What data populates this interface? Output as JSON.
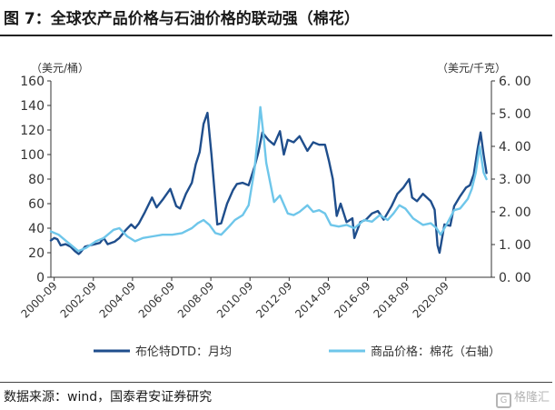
{
  "title": "图 7：全球农产品价格与石油价格的联动强（棉花）",
  "source": "数据来源：wind，国泰君安证券研究",
  "watermark": "格隆汇",
  "chart_data": {
    "type": "line",
    "left_axis": {
      "unit": "（美元/桶）",
      "ylim": [
        0,
        160
      ],
      "tick_labels": [
        "0",
        "20",
        "40",
        "60",
        "80",
        "100",
        "120",
        "140",
        "160"
      ]
    },
    "right_axis": {
      "unit": "（美元/千克）",
      "ylim": [
        0,
        6
      ],
      "tick_labels": [
        "0. 00",
        "1. 00",
        "2. 00",
        "3. 00",
        "4. 00",
        "5. 00",
        "6. 00"
      ]
    },
    "x_range": [
      2000.5,
      2023.0
    ],
    "x_tick_values": [
      2000.67,
      2002.67,
      2004.67,
      2006.67,
      2008.67,
      2010.67,
      2012.67,
      2014.67,
      2016.67,
      2018.67,
      2020.67
    ],
    "x_tick_labels": [
      "2000-09",
      "2002-09",
      "2004-09",
      "2006-09",
      "2008-09",
      "2010-09",
      "2012-09",
      "2014-09",
      "2016-09",
      "2018-09",
      "2020-09"
    ],
    "legend_position": "bottom",
    "series": [
      {
        "name": "布伦特DTD：月均",
        "axis": "left",
        "color": "#1f4e8c",
        "x": [
          2000.5,
          2000.67,
          2000.83,
          2001.0,
          2001.25,
          2001.5,
          2001.75,
          2001.92,
          2002.0,
          2002.25,
          2002.5,
          2002.75,
          2003.0,
          2003.2,
          2003.4,
          2003.75,
          2004.0,
          2004.3,
          2004.6,
          2004.8,
          2005.0,
          2005.3,
          2005.67,
          2005.9,
          2006.2,
          2006.6,
          2006.9,
          2007.1,
          2007.4,
          2007.7,
          2007.9,
          2008.1,
          2008.3,
          2008.5,
          2008.7,
          2008.9,
          2009.0,
          2009.2,
          2009.5,
          2009.8,
          2010.0,
          2010.3,
          2010.6,
          2010.9,
          2011.1,
          2011.3,
          2011.6,
          2011.9,
          2012.2,
          2012.4,
          2012.6,
          2012.9,
          2013.2,
          2013.6,
          2013.9,
          2014.2,
          2014.5,
          2014.7,
          2014.9,
          2015.1,
          2015.3,
          2015.6,
          2015.9,
          2016.0,
          2016.3,
          2016.6,
          2016.9,
          2017.2,
          2017.5,
          2017.9,
          2018.2,
          2018.5,
          2018.8,
          2018.95,
          2019.2,
          2019.5,
          2019.9,
          2020.1,
          2020.25,
          2020.35,
          2020.6,
          2020.9,
          2021.1,
          2021.4,
          2021.7,
          2021.9,
          2022.1,
          2022.3,
          2022.45,
          2022.6,
          2022.75
        ],
        "values": [
          30,
          32,
          31,
          26,
          27,
          25,
          21,
          19,
          20,
          25,
          26,
          27,
          28,
          32,
          27,
          29,
          32,
          38,
          43,
          40,
          44,
          53,
          65,
          57,
          63,
          72,
          58,
          56,
          68,
          77,
          92,
          102,
          125,
          134,
          100,
          62,
          43,
          44,
          60,
          71,
          76,
          77,
          75,
          90,
          102,
          118,
          112,
          108,
          119,
          100,
          112,
          110,
          115,
          103,
          110,
          108,
          108,
          95,
          80,
          50,
          60,
          45,
          48,
          32,
          45,
          47,
          52,
          54,
          47,
          58,
          68,
          73,
          80,
          65,
          62,
          68,
          62,
          55,
          26,
          20,
          43,
          42,
          58,
          66,
          73,
          75,
          84,
          105,
          118,
          100,
          85
        ]
      },
      {
        "name": "商品价格：棉花（右轴）",
        "axis": "right",
        "color": "#6ec6ea",
        "x": [
          2000.5,
          2000.9,
          2001.3,
          2001.7,
          2001.9,
          2002.3,
          2002.8,
          2003.2,
          2003.7,
          2004.0,
          2004.4,
          2004.8,
          2005.2,
          2005.7,
          2006.2,
          2006.7,
          2007.2,
          2007.7,
          2008.0,
          2008.3,
          2008.6,
          2008.9,
          2009.2,
          2009.6,
          2009.9,
          2010.3,
          2010.6,
          2010.9,
          2011.1,
          2011.2,
          2011.35,
          2011.5,
          2011.7,
          2011.9,
          2012.2,
          2012.6,
          2012.9,
          2013.2,
          2013.6,
          2013.9,
          2014.2,
          2014.5,
          2014.8,
          2015.2,
          2015.6,
          2016.0,
          2016.5,
          2016.9,
          2017.3,
          2017.7,
          2018.0,
          2018.3,
          2018.6,
          2019.0,
          2019.5,
          2019.9,
          2020.2,
          2020.4,
          2020.7,
          2021.1,
          2021.4,
          2021.8,
          2022.0,
          2022.2,
          2022.4,
          2022.6,
          2022.75
        ],
        "values": [
          1.4,
          1.3,
          1.1,
          0.9,
          0.8,
          0.9,
          1.1,
          1.2,
          1.45,
          1.5,
          1.25,
          1.1,
          1.2,
          1.25,
          1.3,
          1.3,
          1.35,
          1.5,
          1.65,
          1.75,
          1.6,
          1.35,
          1.3,
          1.55,
          1.75,
          1.9,
          2.2,
          3.3,
          4.5,
          5.2,
          4.4,
          3.5,
          2.9,
          2.3,
          2.5,
          1.95,
          1.9,
          2.0,
          2.2,
          2.0,
          2.05,
          1.95,
          1.6,
          1.55,
          1.6,
          1.5,
          1.75,
          1.7,
          1.9,
          1.75,
          1.95,
          2.2,
          2.1,
          1.8,
          1.6,
          1.65,
          1.5,
          1.3,
          1.6,
          2.05,
          2.1,
          2.4,
          2.7,
          3.2,
          4.0,
          3.2,
          3.0
        ]
      }
    ]
  }
}
